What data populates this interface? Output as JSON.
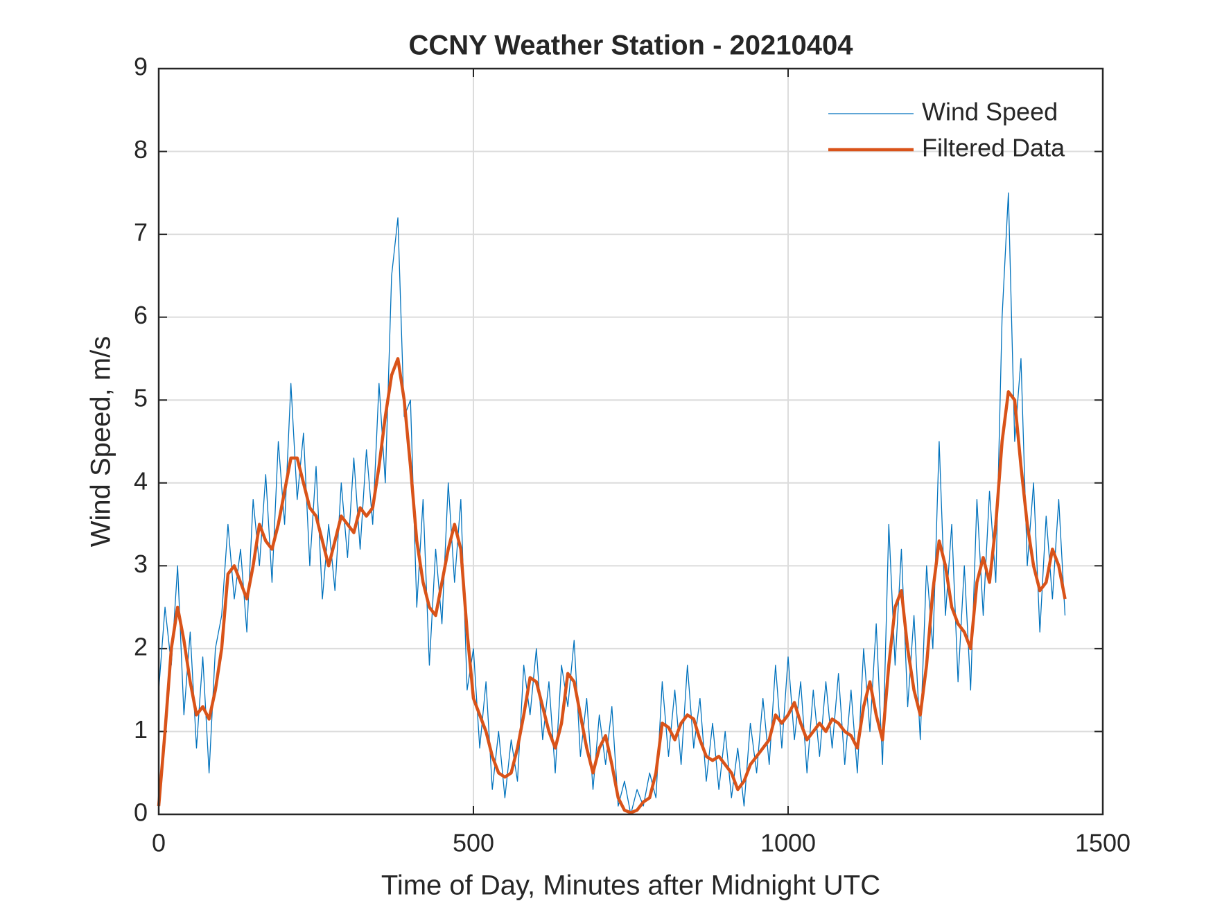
{
  "chart_data": {
    "type": "line",
    "title": "CCNY Weather Station - 20210404",
    "x_label": "Time of Day, Minutes after Midnight UTC",
    "y_label": "Wind Speed, m/s",
    "x": [
      0,
      10,
      20,
      30,
      40,
      50,
      60,
      70,
      80,
      90,
      100,
      110,
      120,
      130,
      140,
      150,
      160,
      170,
      180,
      190,
      200,
      210,
      220,
      230,
      240,
      250,
      260,
      270,
      280,
      290,
      300,
      310,
      320,
      330,
      340,
      350,
      360,
      370,
      380,
      390,
      400,
      410,
      420,
      430,
      440,
      450,
      460,
      470,
      480,
      490,
      500,
      510,
      520,
      530,
      540,
      550,
      560,
      570,
      580,
      590,
      600,
      610,
      620,
      630,
      640,
      650,
      660,
      670,
      680,
      690,
      700,
      710,
      720,
      730,
      740,
      750,
      760,
      770,
      780,
      790,
      800,
      810,
      820,
      830,
      840,
      850,
      860,
      870,
      880,
      890,
      900,
      910,
      920,
      930,
      940,
      950,
      960,
      970,
      980,
      990,
      1000,
      1010,
      1020,
      1030,
      1040,
      1050,
      1060,
      1070,
      1080,
      1090,
      1100,
      1110,
      1120,
      1130,
      1140,
      1150,
      1160,
      1170,
      1180,
      1190,
      1200,
      1210,
      1220,
      1230,
      1240,
      1250,
      1260,
      1270,
      1280,
      1290,
      1300,
      1310,
      1320,
      1330,
      1340,
      1350,
      1360,
      1370,
      1380,
      1390,
      1400,
      1410,
      1420,
      1430,
      1440
    ],
    "series": [
      {
        "name": "Wind Speed",
        "color": "#0072bd",
        "width": 1.3,
        "values": [
          1.5,
          2.5,
          1.8,
          3.0,
          1.2,
          2.2,
          0.8,
          1.9,
          0.5,
          2.0,
          2.4,
          3.5,
          2.6,
          3.2,
          2.2,
          3.8,
          3.0,
          4.1,
          2.8,
          4.5,
          3.5,
          5.2,
          3.8,
          4.6,
          3.0,
          4.2,
          2.6,
          3.5,
          2.7,
          4.0,
          3.1,
          4.3,
          3.2,
          4.4,
          3.5,
          5.2,
          4.0,
          6.5,
          7.2,
          4.8,
          5.0,
          2.5,
          3.8,
          1.8,
          3.2,
          2.3,
          4.0,
          2.8,
          3.8,
          1.5,
          2.0,
          0.8,
          1.6,
          0.3,
          1.0,
          0.2,
          0.9,
          0.4,
          1.8,
          1.2,
          2.0,
          0.9,
          1.6,
          0.5,
          1.8,
          1.3,
          2.1,
          0.7,
          1.4,
          0.3,
          1.2,
          0.6,
          1.3,
          0.1,
          0.4,
          0.0,
          0.3,
          0.1,
          0.5,
          0.2,
          1.6,
          0.7,
          1.5,
          0.6,
          1.8,
          0.8,
          1.4,
          0.4,
          1.1,
          0.3,
          1.0,
          0.2,
          0.8,
          0.1,
          1.1,
          0.5,
          1.4,
          0.6,
          1.8,
          0.8,
          1.9,
          0.9,
          1.6,
          0.5,
          1.5,
          0.7,
          1.6,
          0.8,
          1.7,
          0.6,
          1.5,
          0.5,
          2.0,
          1.0,
          2.3,
          0.6,
          3.5,
          1.8,
          3.2,
          1.3,
          2.4,
          0.9,
          3.0,
          2.0,
          4.5,
          2.4,
          3.5,
          1.6,
          3.0,
          1.5,
          3.8,
          2.4,
          3.9,
          2.8,
          6.0,
          7.5,
          4.5,
          5.5,
          3.0,
          4.0,
          2.2,
          3.6,
          2.6,
          3.8,
          2.4
        ]
      },
      {
        "name": "Filtered Data",
        "color": "#d95319",
        "width": 4.5,
        "values": [
          0.1,
          1.0,
          2.0,
          2.5,
          2.1,
          1.6,
          1.2,
          1.3,
          1.15,
          1.5,
          2.0,
          2.9,
          3.0,
          2.8,
          2.6,
          3.0,
          3.5,
          3.3,
          3.2,
          3.5,
          3.9,
          4.3,
          4.3,
          4.0,
          3.7,
          3.6,
          3.3,
          3.0,
          3.3,
          3.6,
          3.5,
          3.4,
          3.7,
          3.6,
          3.7,
          4.2,
          4.8,
          5.3,
          5.5,
          5.0,
          4.2,
          3.3,
          2.8,
          2.5,
          2.4,
          2.8,
          3.2,
          3.5,
          3.2,
          2.2,
          1.4,
          1.2,
          1.0,
          0.7,
          0.5,
          0.45,
          0.5,
          0.8,
          1.2,
          1.65,
          1.6,
          1.3,
          1.0,
          0.8,
          1.1,
          1.7,
          1.6,
          1.2,
          0.8,
          0.5,
          0.8,
          0.95,
          0.6,
          0.2,
          0.05,
          0.02,
          0.05,
          0.15,
          0.2,
          0.5,
          1.1,
          1.05,
          0.9,
          1.1,
          1.2,
          1.15,
          0.9,
          0.7,
          0.65,
          0.7,
          0.6,
          0.5,
          0.3,
          0.4,
          0.6,
          0.7,
          0.8,
          0.9,
          1.2,
          1.1,
          1.2,
          1.35,
          1.1,
          0.9,
          1.0,
          1.1,
          1.0,
          1.15,
          1.1,
          1.0,
          0.95,
          0.8,
          1.3,
          1.6,
          1.2,
          0.9,
          1.8,
          2.5,
          2.7,
          2.0,
          1.5,
          1.2,
          1.8,
          2.7,
          3.3,
          3.0,
          2.5,
          2.3,
          2.2,
          2.0,
          2.8,
          3.1,
          2.8,
          3.5,
          4.5,
          5.1,
          5.0,
          4.2,
          3.5,
          3.0,
          2.7,
          2.8,
          3.2,
          3.0,
          2.6
        ]
      }
    ],
    "xlim": [
      0,
      1500
    ],
    "xticks": [
      0,
      500,
      1000,
      1500
    ],
    "ylim": [
      0,
      9
    ],
    "yticks": [
      0,
      1,
      2,
      3,
      4,
      5,
      6,
      7,
      8,
      9
    ],
    "grid": true,
    "legend": "upper-right"
  }
}
